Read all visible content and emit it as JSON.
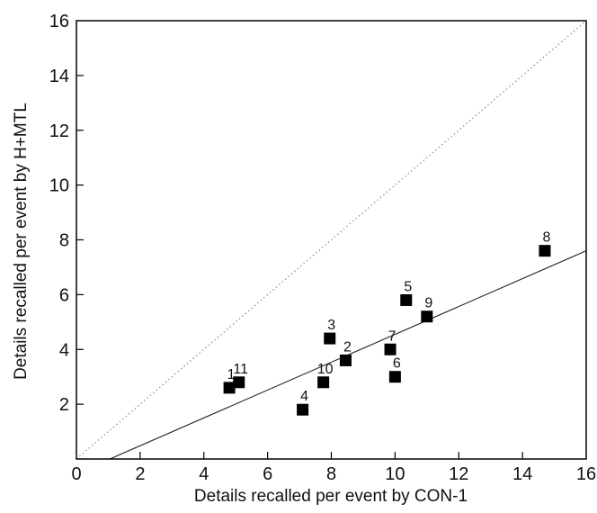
{
  "chart_data": {
    "type": "scatter",
    "xlabel": "Details recalled per event  by CON-1",
    "ylabel": "Details recalled per event by H+MTL",
    "xlim": [
      0,
      16
    ],
    "ylim": [
      0,
      16
    ],
    "x_ticks": [
      0,
      2,
      4,
      6,
      8,
      10,
      12,
      14,
      16
    ],
    "y_ticks": [
      2,
      4,
      6,
      8,
      10,
      12,
      14,
      16
    ],
    "grid": false,
    "legend": "none",
    "marker": "square",
    "points": [
      {
        "label": "1",
        "x": 4.8,
        "y": 2.6
      },
      {
        "label": "11",
        "x": 5.1,
        "y": 2.8
      },
      {
        "label": "4",
        "x": 7.1,
        "y": 1.8
      },
      {
        "label": "10",
        "x": 7.75,
        "y": 2.8
      },
      {
        "label": "3",
        "x": 7.95,
        "y": 4.4
      },
      {
        "label": "2",
        "x": 8.45,
        "y": 3.6
      },
      {
        "label": "7",
        "x": 9.85,
        "y": 4.0
      },
      {
        "label": "6",
        "x": 10.0,
        "y": 3.0
      },
      {
        "label": "5",
        "x": 10.35,
        "y": 5.8
      },
      {
        "label": "9",
        "x": 11.0,
        "y": 5.2
      },
      {
        "label": "8",
        "x": 14.7,
        "y": 7.6
      }
    ],
    "reference_line": {
      "style": "dotted",
      "from": [
        0,
        0
      ],
      "to": [
        16,
        16
      ],
      "color": "#8a8a8a"
    },
    "regression_line": {
      "style": "solid",
      "from": [
        1.05,
        0
      ],
      "to": [
        16,
        7.6
      ],
      "color": "#222222"
    },
    "colors": {
      "marker": "#000000",
      "axis": "#000000",
      "text": "#111111"
    }
  }
}
